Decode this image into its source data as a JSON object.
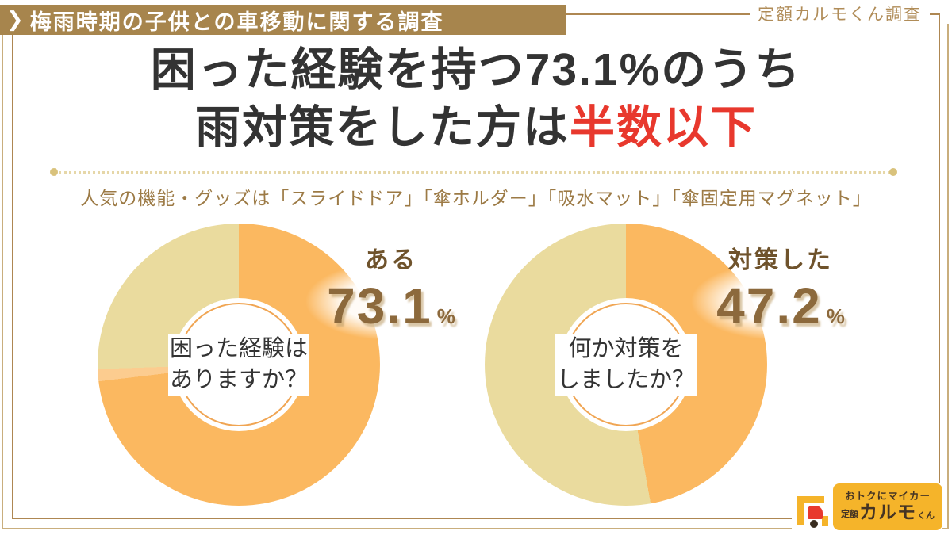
{
  "header_badge": {
    "arrow": "❯",
    "label": "梅雨時期の子供との車移動に関する調査"
  },
  "corner_label": "定額カルモくん調査",
  "title": {
    "line1": "困った経験を持つ73.1%のうち",
    "line2_normal": "雨対策をした方は",
    "line2_red": "半数以下"
  },
  "subtitle": "人気の機能・グッズは「スライドドア」「傘ホルダー」「吸水マット」「傘固定用マグネット」",
  "chart_data": [
    {
      "type": "pie",
      "style": "donut",
      "question_line1": "困った経験は",
      "question_line2": "ありますか？",
      "highlight_label": "ある",
      "highlight_value": "73.1",
      "unit": "%",
      "start_angle": "top",
      "direction": "clockwise",
      "hole_ratio": 0.47,
      "segments": [
        {
          "label": "ある",
          "value": 73.1,
          "color": "#fbb860"
        },
        {
          "label": "",
          "value": 1.4,
          "color": "#fccc8f"
        },
        {
          "label": "",
          "value": 25.5,
          "color": "#eadb9e"
        }
      ]
    },
    {
      "type": "pie",
      "style": "donut",
      "question_line1": "何か対策を",
      "question_line2": "しましたか？",
      "highlight_label": "対策した",
      "highlight_value": "47.2",
      "unit": "%",
      "start_angle": "top",
      "direction": "clockwise",
      "hole_ratio": 0.47,
      "segments": [
        {
          "label": "対策した",
          "value": 47.2,
          "color": "#fbb860"
        },
        {
          "label": "",
          "value": 52.8,
          "color": "#eadb9e"
        }
      ]
    }
  ],
  "logo": {
    "tagline": "おトクにマイカー",
    "brand_prefix": "定額",
    "brand_main": "カルモ",
    "brand_suffix": "くん"
  },
  "colors": {
    "accent_orange": "#fbb860",
    "accent_tan": "#eadb9e",
    "badge_gold": "#a7854d",
    "frame_gold": "#ae8752",
    "number_brown": "#8c693c",
    "subtitle_brown": "#9c7a45",
    "title_dark": "#333333",
    "title_red": "#e8382d",
    "logo_yellow": "#f5b42a",
    "logo_red": "#e8392e"
  }
}
